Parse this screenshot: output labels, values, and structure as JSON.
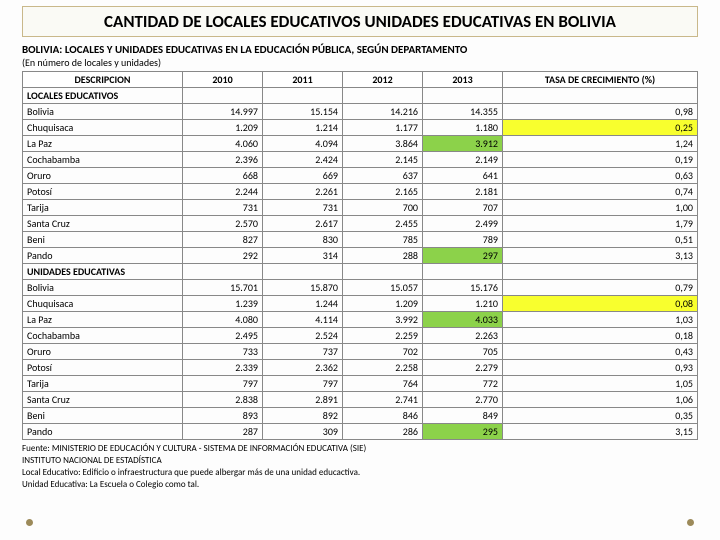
{
  "title": "CANTIDAD DE LOCALES EDUCATIVOS UNIDADES EDUCATIVAS EN BOLIVIA",
  "table_title": "BOLIVIA: LOCALES Y UNIDADES EDUCATIVAS EN LA EDUCACIÓN PÚBLICA, SEGÚN DEPARTAMENTO",
  "table_subtitle": "(En número de locales y unidades)",
  "columns": [
    "DESCRIPCION",
    "2010",
    "2011",
    "2012",
    "2013",
    "TASA DE CRECIMIENTO (%)"
  ],
  "section1": "LOCALES EDUCATIVOS",
  "section2": "UNIDADES EDUCATIVAS",
  "locales": [
    {
      "d": "Bolivia",
      "v": [
        "14.997",
        "15.154",
        "14.216",
        "14.355",
        "0,98"
      ],
      "hl": []
    },
    {
      "d": "Chuquisaca",
      "v": [
        "1.209",
        "1.214",
        "1.177",
        "1.180",
        "0,25"
      ],
      "hl": [
        {
          "i": 4,
          "c": "yellow"
        }
      ]
    },
    {
      "d": "La Paz",
      "v": [
        "4.060",
        "4.094",
        "3.864",
        "3.912",
        "1,24"
      ],
      "hl": [
        {
          "i": 3,
          "c": "green"
        }
      ]
    },
    {
      "d": "Cochabamba",
      "v": [
        "2.396",
        "2.424",
        "2.145",
        "2.149",
        "0,19"
      ],
      "hl": []
    },
    {
      "d": "Oruro",
      "v": [
        "668",
        "669",
        "637",
        "641",
        "0,63"
      ],
      "hl": []
    },
    {
      "d": "Potosí",
      "v": [
        "2.244",
        "2.261",
        "2.165",
        "2.181",
        "0,74"
      ],
      "hl": []
    },
    {
      "d": "Tarija",
      "v": [
        "731",
        "731",
        "700",
        "707",
        "1,00"
      ],
      "hl": []
    },
    {
      "d": "Santa Cruz",
      "v": [
        "2.570",
        "2.617",
        "2.455",
        "2.499",
        "1,79"
      ],
      "hl": []
    },
    {
      "d": "Beni",
      "v": [
        "827",
        "830",
        "785",
        "789",
        "0,51"
      ],
      "hl": []
    },
    {
      "d": "Pando",
      "v": [
        "292",
        "314",
        "288",
        "297",
        "3,13"
      ],
      "hl": [
        {
          "i": 3,
          "c": "green"
        }
      ]
    }
  ],
  "unidades": [
    {
      "d": "Bolivia",
      "v": [
        "15.701",
        "15.870",
        "15.057",
        "15.176",
        "0,79"
      ],
      "hl": []
    },
    {
      "d": "Chuquisaca",
      "v": [
        "1.239",
        "1.244",
        "1.209",
        "1.210",
        "0,08"
      ],
      "hl": [
        {
          "i": 4,
          "c": "yellow"
        }
      ]
    },
    {
      "d": "La Paz",
      "v": [
        "4.080",
        "4.114",
        "3.992",
        "4.033",
        "1,03"
      ],
      "hl": [
        {
          "i": 3,
          "c": "green"
        }
      ]
    },
    {
      "d": "Cochabamba",
      "v": [
        "2.495",
        "2.524",
        "2.259",
        "2.263",
        "0,18"
      ],
      "hl": []
    },
    {
      "d": "Oruro",
      "v": [
        "733",
        "737",
        "702",
        "705",
        "0,43"
      ],
      "hl": []
    },
    {
      "d": "Potosí",
      "v": [
        "2.339",
        "2.362",
        "2.258",
        "2.279",
        "0,93"
      ],
      "hl": []
    },
    {
      "d": "Tarija",
      "v": [
        "797",
        "797",
        "764",
        "772",
        "1,05"
      ],
      "hl": []
    },
    {
      "d": "Santa Cruz",
      "v": [
        "2.838",
        "2.891",
        "2.741",
        "2.770",
        "1,06"
      ],
      "hl": []
    },
    {
      "d": "Beni",
      "v": [
        "893",
        "892",
        "846",
        "849",
        "0,35"
      ],
      "hl": []
    },
    {
      "d": "Pando",
      "v": [
        "287",
        "309",
        "286",
        "295",
        "3,15"
      ],
      "hl": [
        {
          "i": 3,
          "c": "green"
        }
      ]
    }
  ],
  "footer1": "Fuente: MINISTERIO DE EDUCACIÓN Y CULTURA - SISTEMA DE INFORMACIÓN EDUCATIVA (SIE)",
  "footer2": "INSTITUTO NACIONAL DE ESTADÍSTICA",
  "footer3": "Local Educativo: Edificio o infraestructura que puede albergar más de una unidad educactiva.",
  "footer4": "Unidad Educativa: La Escuela o Colegio como tal.",
  "colors": {
    "title_border": "#c9b88a",
    "title_bg": "#fafaf5",
    "cell_border": "#888888",
    "highlight_yellow": "#f8ff2e",
    "highlight_green": "#8cd24a",
    "dot": "#9c8a5a"
  }
}
